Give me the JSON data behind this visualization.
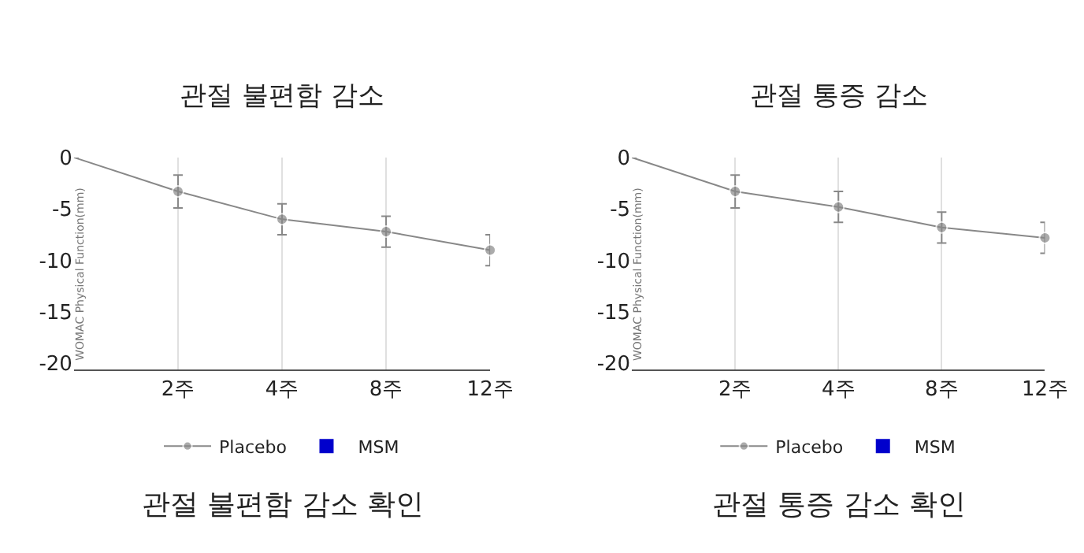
{
  "chart_data": [
    {
      "type": "line",
      "title": "관절 불편함 감소",
      "ylabel": "WOMAC Physical Function(mm)",
      "annotations": [
        "관절 불편함 감소 확인"
      ],
      "categories": [
        null,
        "2주",
        "4주",
        "8주",
        "12주"
      ],
      "series": [
        {
          "name": "Placebo",
          "color": "#888888",
          "values": [
            0,
            -3.3,
            -6,
            -7.2,
            -9
          ],
          "errors": [
            null,
            1.6,
            1.5,
            1.5,
            1.5
          ]
        },
        {
          "name": "MSM",
          "color": "#0000cc",
          "marker": "square",
          "values": [
            null,
            null,
            null,
            null,
            null
          ]
        }
      ],
      "ylim": [
        -20.6,
        0
      ],
      "yticks": [
        0,
        -5,
        -10,
        -15,
        -20
      ],
      "grid": "x",
      "legend": "bottom",
      "marker": "circle"
    },
    {
      "type": "line",
      "title": "관절 통증 감소",
      "ylabel": "WOMAC Physical Function(mm)",
      "annotations": [
        "관절 통증 감소 확인"
      ],
      "categories": [
        null,
        "2주",
        "4주",
        "8주",
        "12주"
      ],
      "series": [
        {
          "name": "Placebo",
          "color": "#888888",
          "values": [
            0,
            -3.3,
            -4.8,
            -6.8,
            -7.8
          ],
          "errors": [
            null,
            1.6,
            1.5,
            1.5,
            1.5
          ]
        },
        {
          "name": "MSM",
          "color": "#0000cc",
          "marker": "square",
          "values": [
            null,
            null,
            null,
            null,
            null
          ]
        }
      ],
      "ylim": [
        -20.6,
        0
      ],
      "yticks": [
        0,
        -5,
        -10,
        -15,
        -20
      ],
      "grid": "x",
      "legend": "bottom",
      "marker": "circle"
    }
  ]
}
